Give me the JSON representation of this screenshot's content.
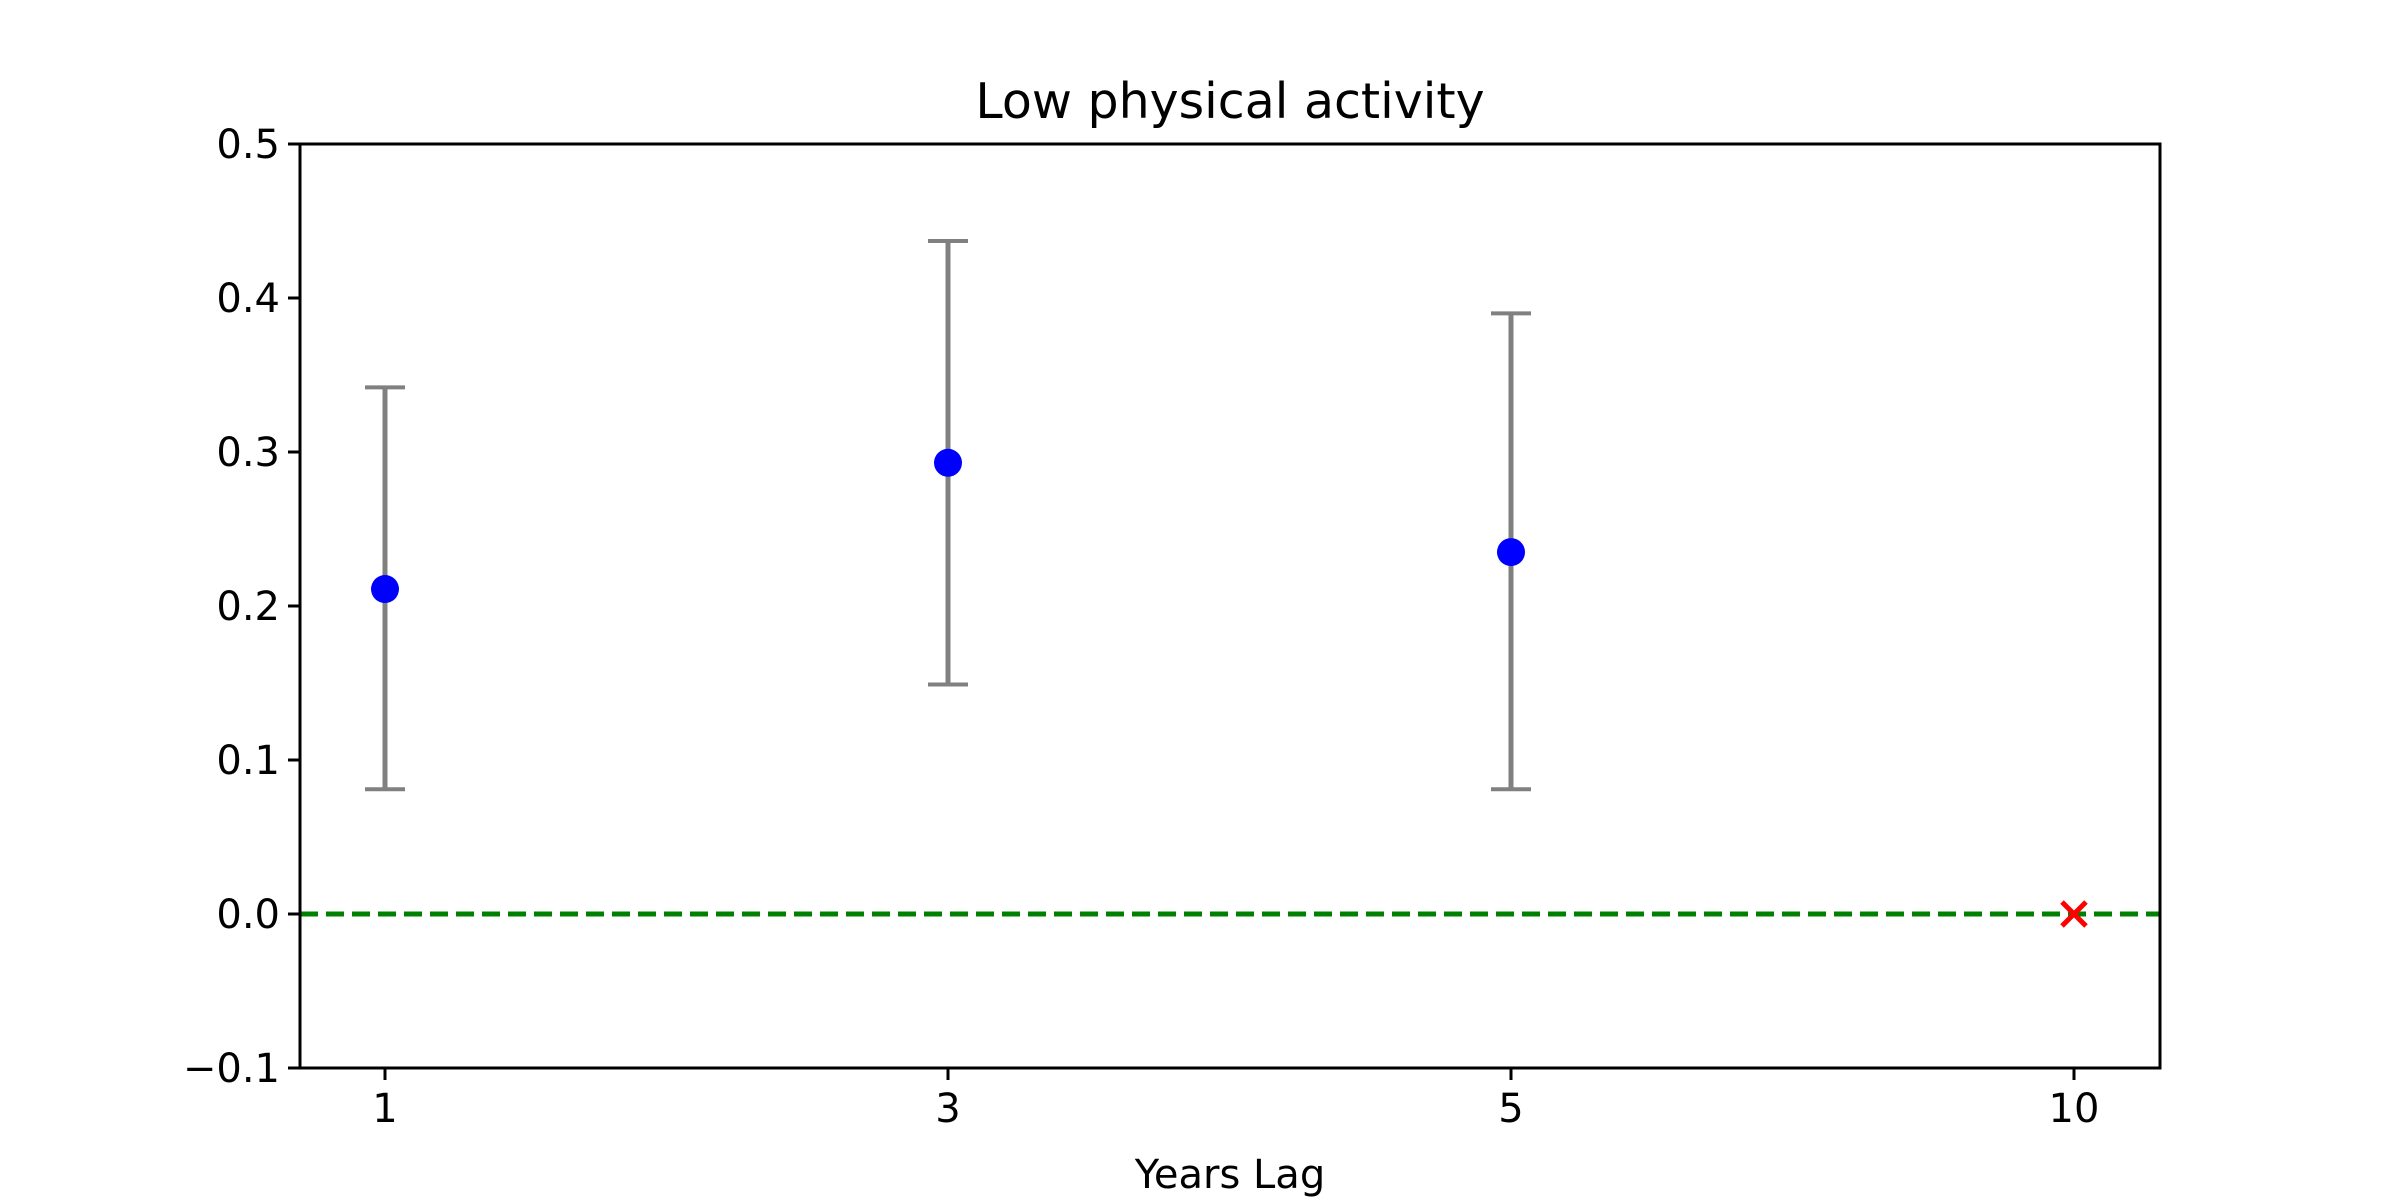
{
  "chart_data": {
    "type": "errorbar",
    "title": "Low physical activity",
    "xlabel": "Years Lag",
    "ylabel": "",
    "categories": [
      "1",
      "3",
      "5",
      "10"
    ],
    "ylim": [
      -0.1,
      0.5
    ],
    "yticks": [
      "−0.1",
      "0.0",
      "0.1",
      "0.2",
      "0.3",
      "0.4",
      "0.5"
    ],
    "ytick_values": [
      -0.1,
      0.0,
      0.1,
      0.2,
      0.3,
      0.4,
      0.5
    ],
    "points": [
      {
        "x": "1",
        "estimate": 0.211,
        "ci_lower": 0.081,
        "ci_upper": 0.342
      },
      {
        "x": "3",
        "estimate": 0.293,
        "ci_lower": 0.149,
        "ci_upper": 0.437
      },
      {
        "x": "5",
        "estimate": 0.235,
        "ci_lower": 0.081,
        "ci_upper": 0.39
      }
    ],
    "missing_markers": [
      {
        "x": "10",
        "y": 0.0,
        "marker": "x"
      }
    ],
    "reference_line": {
      "y": 0.0,
      "style": "dashed"
    },
    "grid": false,
    "legend": "none",
    "colors": {
      "point": "#0000ff",
      "errorbar": "#808080",
      "reference_line": "#008000",
      "missing_marker": "#ff0000",
      "axis": "#000000"
    }
  }
}
